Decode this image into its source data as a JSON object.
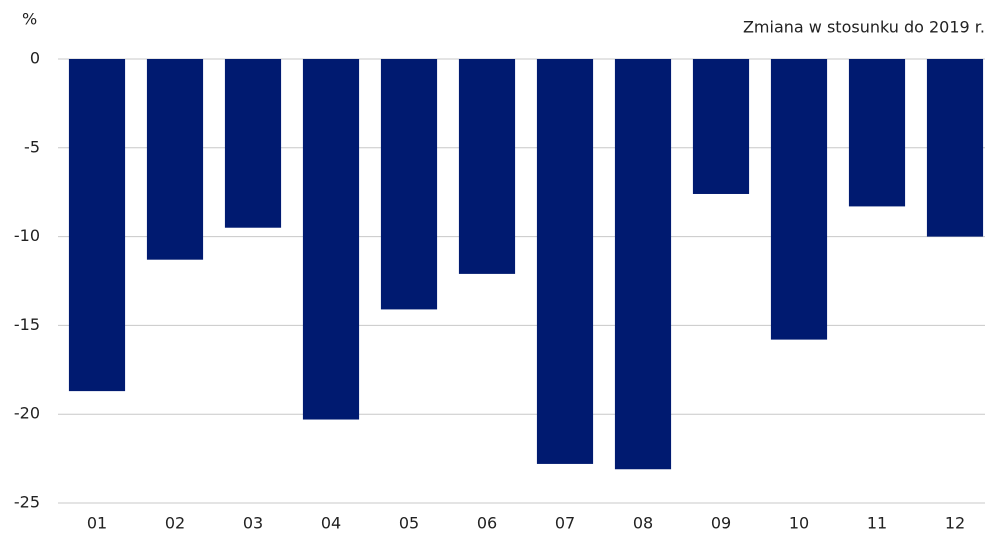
{
  "chart_data": {
    "type": "bar",
    "y_label": "%",
    "subtitle": "Zmiana w stosunku do 2019 r.",
    "categories": [
      "01",
      "02",
      "03",
      "04",
      "05",
      "06",
      "07",
      "08",
      "09",
      "10",
      "11",
      "12"
    ],
    "values": [
      -18.7,
      -11.3,
      -9.5,
      -20.3,
      -14.1,
      -12.1,
      -22.8,
      -23.1,
      -7.6,
      -15.8,
      -8.3,
      -10.0
    ],
    "color": "#001a70",
    "ylim": [
      -25,
      0
    ],
    "yticks": [
      0,
      -5,
      -10,
      -15,
      -20,
      -25
    ],
    "grid": true
  }
}
